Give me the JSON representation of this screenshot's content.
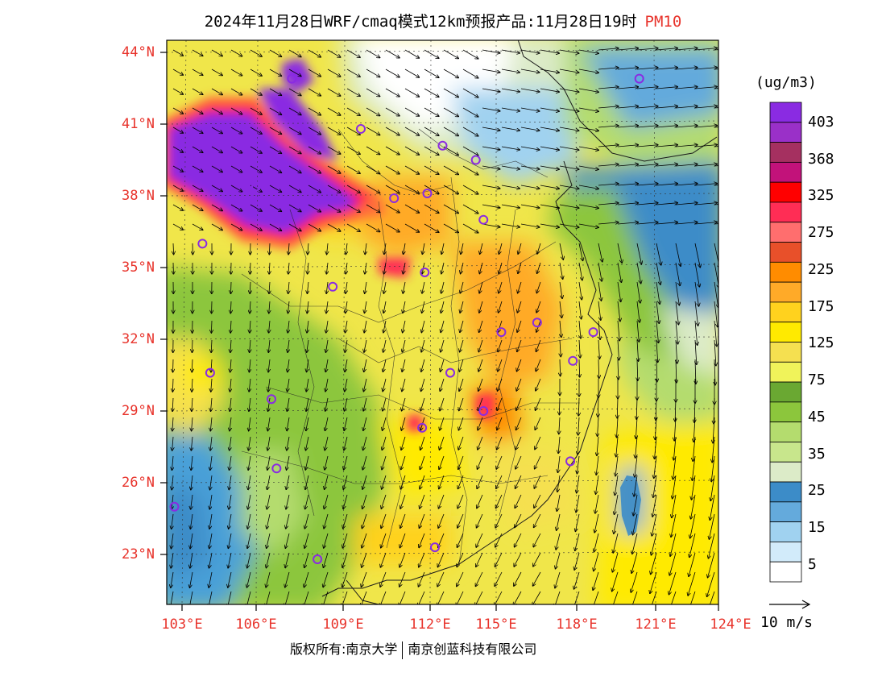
{
  "title": {
    "text": "2024年11月28日WRF/cmaq模式12km预报产品:11月28日19时",
    "product": "PM10"
  },
  "axes": {
    "lat_labels": [
      "44°N",
      "41°N",
      "38°N",
      "35°N",
      "32°N",
      "29°N",
      "26°N",
      "23°N"
    ],
    "lat_values": [
      44,
      41,
      38,
      35,
      32,
      29,
      26,
      23
    ],
    "lon_labels": [
      "103°E",
      "106°E",
      "109°E",
      "112°E",
      "115°E",
      "118°E",
      "121°E",
      "124°E"
    ],
    "lon_values": [
      103,
      106,
      109,
      112,
      115,
      118,
      121,
      124
    ],
    "lat_range": [
      20.9,
      44.6
    ],
    "lon_range": [
      103,
      124
    ]
  },
  "colorbar": {
    "unit": "(ug/m3)",
    "labels": [
      "403",
      "368",
      "325",
      "275",
      "225",
      "175",
      "125",
      "75",
      "45",
      "35",
      "25",
      "15",
      "5"
    ],
    "colors": [
      "#8a2be2",
      "#9a30c8",
      "#a53060",
      "#c2127a",
      "#ff0000",
      "#ff2d55",
      "#ff6e6e",
      "#e8502a",
      "#ff8c00",
      "#ffaa28",
      "#ffd21e",
      "#ffea00",
      "#f5e050",
      "#f0f35a",
      "#6aa832",
      "#8cc63c",
      "#b4dc6e",
      "#c8e68c",
      "#dcebc8",
      "#3c8cc8",
      "#64aadc",
      "#a0d2f0",
      "#d2ebfa",
      "#ffffff"
    ]
  },
  "wind_reference": {
    "label": "10 m/s"
  },
  "copyright": {
    "part1": "版权所有:南京大学",
    "part2": "南京创蓝科技有限公司"
  },
  "map_data": {
    "field": "PM10",
    "cities": [
      {
        "lon": 107.3,
        "lat": 42.9
      },
      {
        "lon": 120.9,
        "lat": 42.9
      },
      {
        "lon": 110.0,
        "lat": 40.8
      },
      {
        "lon": 113.2,
        "lat": 40.1
      },
      {
        "lon": 114.5,
        "lat": 39.5
      },
      {
        "lon": 105.9,
        "lat": 38.4
      },
      {
        "lon": 111.3,
        "lat": 37.9
      },
      {
        "lon": 112.6,
        "lat": 38.1
      },
      {
        "lon": 103.8,
        "lat": 36.0
      },
      {
        "lon": 114.8,
        "lat": 37.0
      },
      {
        "lon": 112.5,
        "lat": 34.8
      },
      {
        "lon": 108.9,
        "lat": 34.2
      },
      {
        "lon": 115.5,
        "lat": 32.3
      },
      {
        "lon": 116.9,
        "lat": 32.7
      },
      {
        "lon": 119.1,
        "lat": 32.3
      },
      {
        "lon": 118.3,
        "lat": 31.1
      },
      {
        "lon": 104.1,
        "lat": 30.6
      },
      {
        "lon": 113.5,
        "lat": 30.6
      },
      {
        "lon": 106.5,
        "lat": 29.5
      },
      {
        "lon": 114.8,
        "lat": 29.0
      },
      {
        "lon": 112.4,
        "lat": 28.3
      },
      {
        "lon": 106.7,
        "lat": 26.6
      },
      {
        "lon": 118.2,
        "lat": 26.9
      },
      {
        "lon": 102.7,
        "lat": 25.0
      },
      {
        "lon": 112.9,
        "lat": 23.3
      },
      {
        "lon": 108.3,
        "lat": 22.8
      }
    ]
  }
}
